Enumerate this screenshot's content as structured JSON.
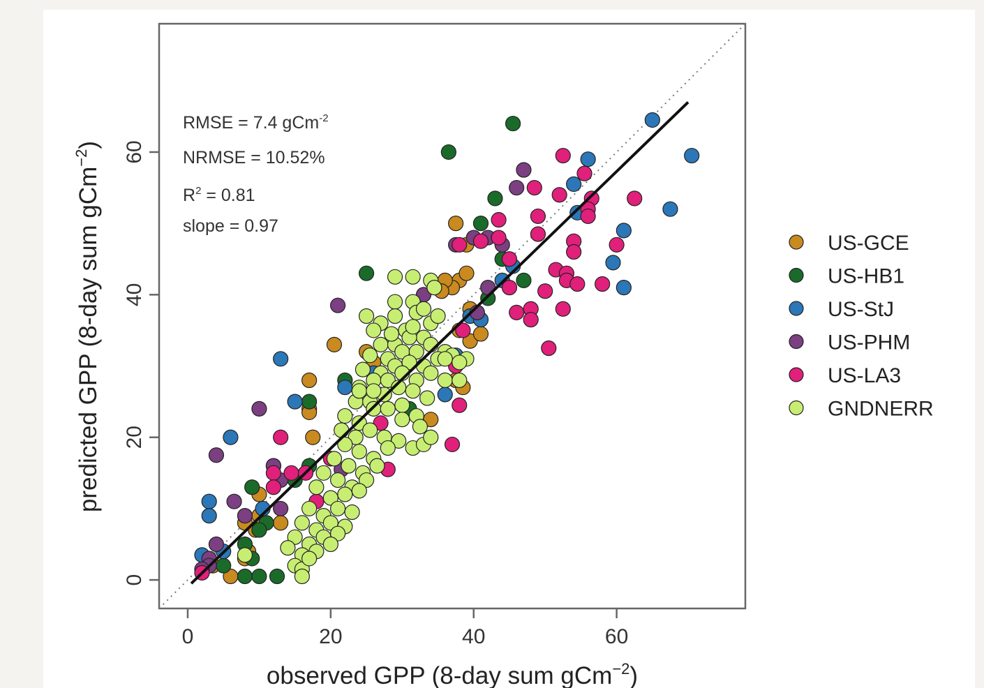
{
  "chart_data": {
    "type": "scatter",
    "xlabel": "observed GPP (8-day sum gCm",
    "xlabel_sup": "−2",
    "xlabel_end": ")",
    "ylabel": "predicted GPP (8-day sum gCm",
    "ylabel_sup": "−2",
    "ylabel_end": ")",
    "xlim": [
      -4,
      78
    ],
    "ylim": [
      -4,
      78
    ],
    "xticks": [
      0,
      20,
      40,
      60
    ],
    "yticks": [
      0,
      20,
      40,
      60
    ],
    "grid": false,
    "legend_position": "right",
    "one_to_one_line": {
      "style": "dotted",
      "from": [
        -4,
        -4
      ],
      "to": [
        78,
        78
      ]
    },
    "fit_line": {
      "from": [
        0.5,
        -0.5
      ],
      "to": [
        70,
        67
      ]
    },
    "annotations": [
      {
        "id": "rmse",
        "text": "RMSE = 7.4 gCm",
        "sup": "-2"
      },
      {
        "id": "nrmse",
        "text": "NRMSE = 10.52%",
        "sup": ""
      },
      {
        "id": "r2",
        "text": "R",
        "sup": "2",
        "tail": " = 0.81"
      },
      {
        "id": "slope",
        "text": "slope = 0.97",
        "sup": ""
      }
    ],
    "series": [
      {
        "name": "US-GCE",
        "color": "#c98a1f",
        "points": [
          [
            37.5,
            50
          ],
          [
            39,
            47
          ],
          [
            38,
            42
          ],
          [
            39,
            43
          ],
          [
            37,
            41
          ],
          [
            36,
            42
          ],
          [
            35.5,
            40.5
          ],
          [
            39.5,
            38
          ],
          [
            40.5,
            37
          ],
          [
            38,
            35
          ],
          [
            39.5,
            33.5
          ],
          [
            41,
            34.5
          ],
          [
            37.5,
            28
          ],
          [
            38.5,
            27
          ],
          [
            34,
            22.5
          ],
          [
            20.5,
            33
          ],
          [
            26,
            30.5
          ],
          [
            25,
            32
          ],
          [
            17,
            28
          ],
          [
            17,
            24
          ],
          [
            17,
            23.5
          ],
          [
            17.5,
            20
          ],
          [
            10,
            12
          ],
          [
            8,
            8
          ],
          [
            8.5,
            4
          ],
          [
            10,
            9
          ],
          [
            6,
            0.5
          ],
          [
            8,
            3
          ],
          [
            9.5,
            7
          ],
          [
            13,
            8
          ],
          [
            3.5,
            2
          ]
        ]
      },
      {
        "name": "US-HB1",
        "color": "#1a6b2a",
        "points": [
          [
            45.5,
            64
          ],
          [
            36.5,
            60
          ],
          [
            43,
            53.5
          ],
          [
            41,
            50
          ],
          [
            44,
            45
          ],
          [
            47,
            42
          ],
          [
            42,
            39.5
          ],
          [
            25,
            43
          ],
          [
            22,
            28
          ],
          [
            17,
            25
          ],
          [
            12,
            16
          ],
          [
            15,
            14
          ],
          [
            17,
            16
          ],
          [
            9,
            13
          ],
          [
            11,
            8
          ],
          [
            10,
            7
          ],
          [
            8,
            5
          ],
          [
            9,
            3
          ],
          [
            8,
            0.5
          ],
          [
            10,
            0.5
          ],
          [
            12.5,
            0.5
          ],
          [
            31,
            24
          ],
          [
            5,
            2
          ]
        ]
      },
      {
        "name": "US-StJ",
        "color": "#2b77b8",
        "points": [
          [
            65,
            64.5
          ],
          [
            70.5,
            59.5
          ],
          [
            67.5,
            52
          ],
          [
            56,
            59
          ],
          [
            54,
            55.5
          ],
          [
            54.5,
            51.5
          ],
          [
            61,
            49
          ],
          [
            59.5,
            44.5
          ],
          [
            61,
            41
          ],
          [
            45.5,
            44
          ],
          [
            44,
            42
          ],
          [
            39.5,
            37
          ],
          [
            41,
            36.5
          ],
          [
            37.5,
            31.5
          ],
          [
            36,
            26
          ],
          [
            26,
            29
          ],
          [
            22,
            27
          ],
          [
            13,
            31
          ],
          [
            15,
            25
          ],
          [
            6,
            20
          ],
          [
            3,
            11
          ],
          [
            3,
            9
          ],
          [
            5,
            4
          ],
          [
            2,
            3.5
          ],
          [
            10.5,
            10
          ]
        ]
      },
      {
        "name": "US-PHM",
        "color": "#7b3f82",
        "points": [
          [
            47,
            57.5
          ],
          [
            46,
            55
          ],
          [
            40,
            48
          ],
          [
            37.5,
            47
          ],
          [
            42,
            48
          ],
          [
            44,
            47
          ],
          [
            21,
            38.5
          ],
          [
            33,
            40
          ],
          [
            40.5,
            37.5
          ],
          [
            42,
            41
          ],
          [
            10,
            24
          ],
          [
            4,
            17.5
          ],
          [
            6.5,
            11
          ],
          [
            12,
            16
          ],
          [
            13,
            14
          ],
          [
            13,
            10
          ],
          [
            4,
            5
          ],
          [
            3,
            3
          ],
          [
            3,
            2
          ],
          [
            21.5,
            15.5
          ],
          [
            8,
            9
          ],
          [
            2,
            1.5
          ]
        ]
      },
      {
        "name": "US-LA3",
        "color": "#e0207a",
        "points": [
          [
            52.5,
            59.5
          ],
          [
            55.5,
            57
          ],
          [
            48.5,
            55
          ],
          [
            52,
            54
          ],
          [
            56.5,
            53.5
          ],
          [
            62.5,
            53.5
          ],
          [
            56,
            52
          ],
          [
            56,
            51
          ],
          [
            49,
            51
          ],
          [
            49,
            48.5
          ],
          [
            43.5,
            50.5
          ],
          [
            43.5,
            48
          ],
          [
            38,
            47
          ],
          [
            41,
            47.5
          ],
          [
            54,
            47.5
          ],
          [
            54,
            46
          ],
          [
            60,
            47
          ],
          [
            45,
            45
          ],
          [
            51.5,
            43.5
          ],
          [
            53,
            43
          ],
          [
            53,
            42
          ],
          [
            54.5,
            41.5
          ],
          [
            58,
            41.5
          ],
          [
            50,
            40.5
          ],
          [
            45,
            41
          ],
          [
            46,
            37.5
          ],
          [
            48,
            38
          ],
          [
            52.5,
            38
          ],
          [
            48,
            36.5
          ],
          [
            38.5,
            35
          ],
          [
            37.5,
            30
          ],
          [
            38,
            24.5
          ],
          [
            37,
            19
          ],
          [
            50.5,
            32.5
          ],
          [
            28,
            15.5
          ],
          [
            13,
            20
          ],
          [
            12,
            15
          ],
          [
            12,
            13
          ],
          [
            14.5,
            15
          ],
          [
            16.5,
            15
          ],
          [
            18,
            11
          ],
          [
            20,
            17
          ],
          [
            27,
            22
          ],
          [
            2,
            1
          ]
        ]
      },
      {
        "name": "GNDNERR",
        "color": "#c7ee72",
        "points": [
          [
            29,
            42.5
          ],
          [
            31.5,
            42.5
          ],
          [
            34,
            42
          ],
          [
            34.5,
            41
          ],
          [
            29,
            39
          ],
          [
            31.5,
            39
          ],
          [
            25,
            37
          ],
          [
            27,
            36
          ],
          [
            29,
            37
          ],
          [
            30.5,
            35
          ],
          [
            32,
            37.5
          ],
          [
            34,
            36
          ],
          [
            33,
            34
          ],
          [
            35,
            37
          ],
          [
            26,
            35
          ],
          [
            27,
            33
          ],
          [
            29,
            33
          ],
          [
            31,
            34
          ],
          [
            25.5,
            31.5
          ],
          [
            28,
            31
          ],
          [
            30,
            32
          ],
          [
            32,
            32
          ],
          [
            34,
            33
          ],
          [
            36,
            32
          ],
          [
            24.5,
            29.5
          ],
          [
            27,
            29
          ],
          [
            29,
            30
          ],
          [
            31,
            30.5
          ],
          [
            33,
            30
          ],
          [
            35,
            31
          ],
          [
            37,
            31.5
          ],
          [
            39,
            31
          ],
          [
            24,
            27
          ],
          [
            26,
            28
          ],
          [
            28,
            28
          ],
          [
            30,
            29
          ],
          [
            32,
            28
          ],
          [
            34,
            29
          ],
          [
            36,
            28
          ],
          [
            38,
            28
          ],
          [
            23.5,
            25
          ],
          [
            25.5,
            25
          ],
          [
            27.5,
            26
          ],
          [
            29.5,
            27
          ],
          [
            31.5,
            26.5
          ],
          [
            33.5,
            25.5
          ],
          [
            22,
            23
          ],
          [
            24,
            22
          ],
          [
            26,
            24
          ],
          [
            28,
            24
          ],
          [
            30,
            24.5
          ],
          [
            32,
            23
          ],
          [
            21.5,
            21
          ],
          [
            23.5,
            20
          ],
          [
            25.5,
            21
          ],
          [
            27.5,
            20
          ],
          [
            29.5,
            19.5
          ],
          [
            31.5,
            18.5
          ],
          [
            33,
            19
          ],
          [
            34,
            20
          ],
          [
            22,
            19
          ],
          [
            24,
            18
          ],
          [
            26,
            17
          ],
          [
            28,
            18.5
          ],
          [
            20.5,
            17
          ],
          [
            22.5,
            16
          ],
          [
            24.5,
            15
          ],
          [
            26.5,
            16
          ],
          [
            19,
            15
          ],
          [
            21,
            14
          ],
          [
            23,
            13
          ],
          [
            25,
            14
          ],
          [
            18,
            13
          ],
          [
            20,
            11.5
          ],
          [
            22,
            12
          ],
          [
            24,
            12.5
          ],
          [
            17,
            10
          ],
          [
            19,
            9
          ],
          [
            21,
            10
          ],
          [
            23,
            9.5
          ],
          [
            16,
            8
          ],
          [
            18,
            7
          ],
          [
            20,
            8
          ],
          [
            22,
            7.5
          ],
          [
            15,
            6
          ],
          [
            17,
            5
          ],
          [
            19,
            6
          ],
          [
            21,
            6.5
          ],
          [
            14,
            4.5
          ],
          [
            16,
            3.5
          ],
          [
            18,
            4
          ],
          [
            20,
            5
          ],
          [
            15,
            2
          ],
          [
            16,
            1.5
          ],
          [
            17,
            3
          ],
          [
            16,
            0.5
          ],
          [
            24,
            26.5
          ],
          [
            26,
            26.5
          ],
          [
            30,
            22.5
          ],
          [
            28.5,
            34.5
          ],
          [
            31.5,
            35.5
          ],
          [
            33,
            38
          ],
          [
            36,
            31
          ],
          [
            38,
            30.5
          ],
          [
            32.5,
            21.5
          ],
          [
            8,
            3.5
          ]
        ]
      }
    ]
  }
}
